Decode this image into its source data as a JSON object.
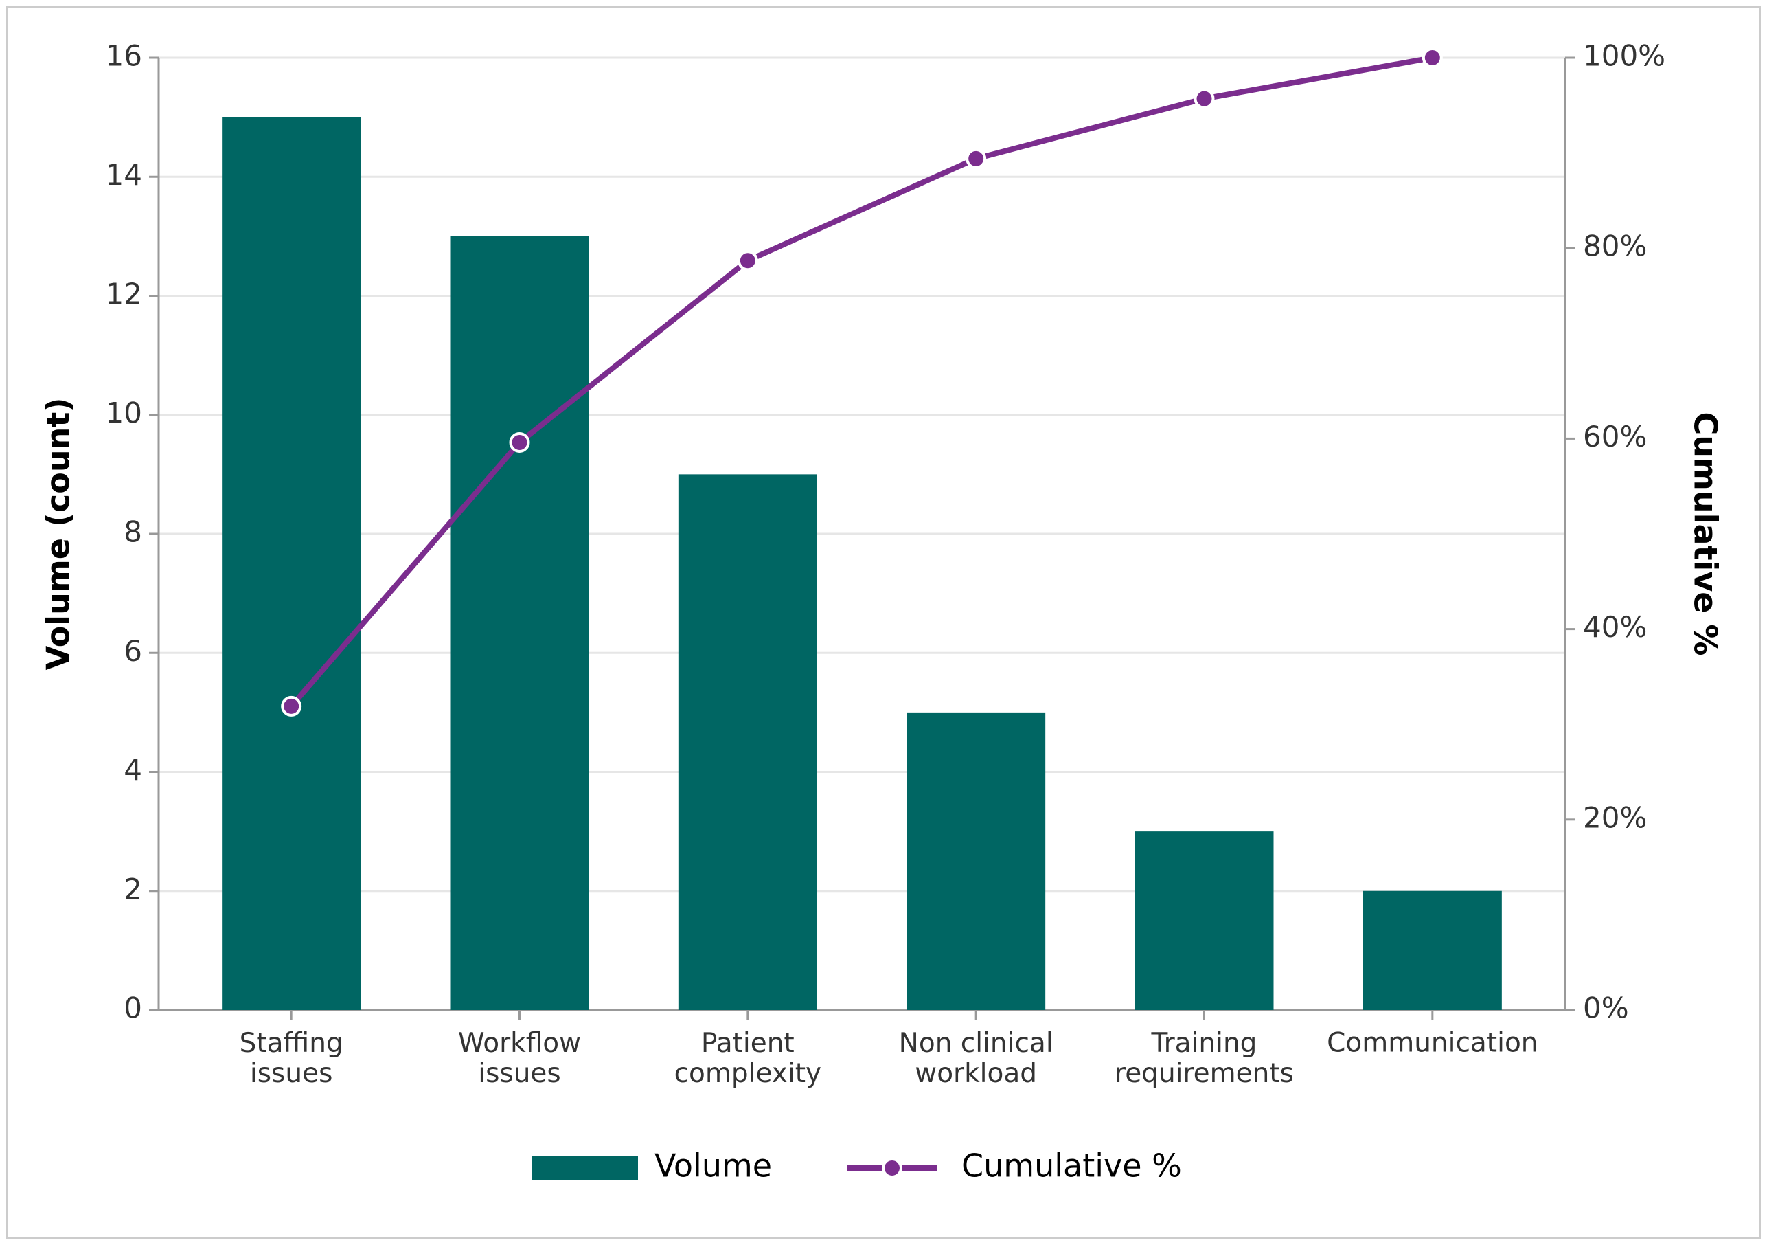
{
  "chart_data": {
    "type": "pareto",
    "categories": [
      "Staffing\nissues",
      "Workflow\nissues",
      "Patient\ncomplexity",
      "Non clinical\nworkload",
      "Training\nrequirements",
      "Communication"
    ],
    "y_label": "Volume (count)",
    "y2_label": "Cumulative %",
    "series": [
      {
        "name": "Volume",
        "type": "bar",
        "color": "#006663",
        "values": [
          15,
          13,
          9,
          5,
          3,
          2
        ]
      },
      {
        "name": "Cumulative %",
        "type": "line",
        "axis": "y2",
        "color": "#7b2d8e",
        "values": [
          31.9,
          59.6,
          78.7,
          89.4,
          95.7,
          100
        ]
      }
    ],
    "ylim": [
      0,
      16
    ],
    "yticks": [
      0,
      2,
      4,
      6,
      8,
      10,
      12,
      14,
      16
    ],
    "y2lim": [
      0,
      100
    ],
    "y2ticks": [
      {
        "value": 0,
        "label": "0%"
      },
      {
        "value": 20,
        "label": "20%"
      },
      {
        "value": 40,
        "label": "40%"
      },
      {
        "value": 60,
        "label": "60%"
      },
      {
        "value": 80,
        "label": "80%"
      },
      {
        "value": 100,
        "label": "100%"
      }
    ],
    "grid": true,
    "legend": "bottom"
  }
}
